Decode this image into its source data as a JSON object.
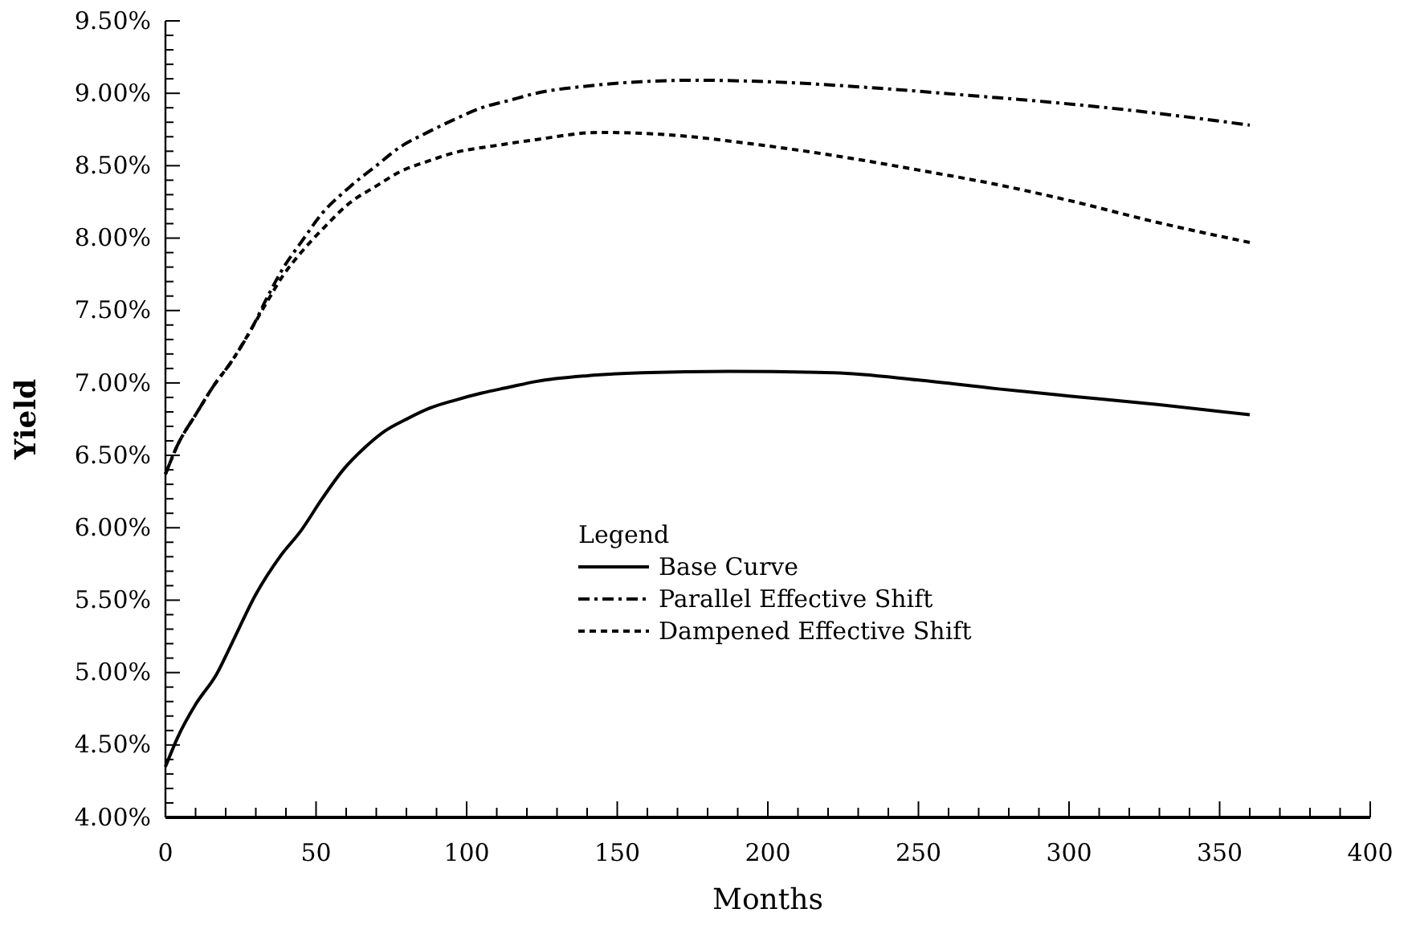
{
  "chart_data": {
    "type": "line",
    "xlabel": "Months",
    "ylabel": "Yield",
    "legend_title": "Legend",
    "legend": "center",
    "xlim": [
      0,
      400
    ],
    "ylim": [
      4,
      9.5
    ],
    "xticks": [
      0,
      {
        "value": 10,
        "label": null
      },
      {
        "value": 20,
        "label": null
      },
      {
        "value": 30,
        "label": null
      },
      {
        "value": 40,
        "label": null
      },
      50,
      {
        "value": 60,
        "label": null
      },
      {
        "value": 70,
        "label": null
      },
      {
        "value": 80,
        "label": null
      },
      {
        "value": 90,
        "label": null
      },
      100,
      {
        "value": 110,
        "label": null
      },
      {
        "value": 120,
        "label": null
      },
      {
        "value": 130,
        "label": null
      },
      {
        "value": 140,
        "label": null
      },
      150,
      {
        "value": 160,
        "label": null
      },
      {
        "value": 170,
        "label": null
      },
      {
        "value": 180,
        "label": null
      },
      {
        "value": 190,
        "label": null
      },
      200,
      {
        "value": 210,
        "label": null
      },
      {
        "value": 220,
        "label": null
      },
      {
        "value": 230,
        "label": null
      },
      {
        "value": 240,
        "label": null
      },
      250,
      {
        "value": 260,
        "label": null
      },
      {
        "value": 270,
        "label": null
      },
      {
        "value": 280,
        "label": null
      },
      {
        "value": 290,
        "label": null
      },
      300,
      {
        "value": 310,
        "label": null
      },
      {
        "value": 320,
        "label": null
      },
      {
        "value": 330,
        "label": null
      },
      {
        "value": 340,
        "label": null
      },
      350,
      {
        "value": 360,
        "label": null
      },
      {
        "value": 370,
        "label": null
      },
      {
        "value": 380,
        "label": null
      },
      {
        "value": 390,
        "label": null
      },
      400
    ],
    "yticks": [
      {
        "value": 4,
        "label": "4.00%"
      },
      {
        "value": 4.1,
        "label": null
      },
      {
        "value": 4.2,
        "label": null
      },
      {
        "value": 4.3,
        "label": null
      },
      {
        "value": 4.4,
        "label": null
      },
      {
        "value": 4.5,
        "label": "4.50%"
      },
      {
        "value": 4.6,
        "label": null
      },
      {
        "value": 4.7,
        "label": null
      },
      {
        "value": 4.8,
        "label": null
      },
      {
        "value": 4.9,
        "label": null
      },
      {
        "value": 5,
        "label": "5.00%"
      },
      {
        "value": 5.1,
        "label": null
      },
      {
        "value": 5.2,
        "label": null
      },
      {
        "value": 5.3,
        "label": null
      },
      {
        "value": 5.4,
        "label": null
      },
      {
        "value": 5.5,
        "label": "5.50%"
      },
      {
        "value": 5.6,
        "label": null
      },
      {
        "value": 5.7,
        "label": null
      },
      {
        "value": 5.8,
        "label": null
      },
      {
        "value": 5.9,
        "label": null
      },
      {
        "value": 6,
        "label": "6.00%"
      },
      {
        "value": 6.1,
        "label": null
      },
      {
        "value": 6.2,
        "label": null
      },
      {
        "value": 6.3,
        "label": null
      },
      {
        "value": 6.4,
        "label": null
      },
      {
        "value": 6.5,
        "label": "6.50%"
      },
      {
        "value": 6.6,
        "label": null
      },
      {
        "value": 6.7,
        "label": null
      },
      {
        "value": 6.8,
        "label": null
      },
      {
        "value": 6.9,
        "label": null
      },
      {
        "value": 7,
        "label": "7.00%"
      },
      {
        "value": 7.1,
        "label": null
      },
      {
        "value": 7.2,
        "label": null
      },
      {
        "value": 7.3,
        "label": null
      },
      {
        "value": 7.4,
        "label": null
      },
      {
        "value": 7.5,
        "label": "7.50%"
      },
      {
        "value": 7.6,
        "label": null
      },
      {
        "value": 7.7,
        "label": null
      },
      {
        "value": 7.8,
        "label": null
      },
      {
        "value": 7.9,
        "label": null
      },
      {
        "value": 8,
        "label": "8.00%"
      },
      {
        "value": 8.1,
        "label": null
      },
      {
        "value": 8.2,
        "label": null
      },
      {
        "value": 8.3,
        "label": null
      },
      {
        "value": 8.4,
        "label": null
      },
      {
        "value": 8.5,
        "label": "8.50%"
      },
      {
        "value": 8.6,
        "label": null
      },
      {
        "value": 8.7,
        "label": null
      },
      {
        "value": 8.8,
        "label": null
      },
      {
        "value": 8.9,
        "label": null
      },
      {
        "value": 9,
        "label": "9.00%"
      },
      {
        "value": 9.1,
        "label": null
      },
      {
        "value": 9.2,
        "label": null
      },
      {
        "value": 9.3,
        "label": null
      },
      {
        "value": 9.4,
        "label": null
      },
      {
        "value": 9.5,
        "label": "9.50%"
      }
    ],
    "series": [
      {
        "name": "Base Curve",
        "color": "#000000",
        "line_style": "solid",
        "x": [
          0,
          4,
          10,
          17,
          22,
          30,
          38,
          45,
          52,
          59,
          66,
          73,
          80,
          87,
          96,
          105,
          114,
          123,
          140,
          158,
          187,
          222,
          250,
          276,
          300,
          330,
          360
        ],
        "values": [
          4.35,
          4.55,
          4.78,
          4.99,
          5.2,
          5.54,
          5.8,
          5.98,
          6.2,
          6.4,
          6.55,
          6.67,
          6.75,
          6.82,
          6.88,
          6.93,
          6.97,
          7.01,
          7.05,
          7.07,
          7.08,
          7.07,
          7.02,
          6.96,
          6.91,
          6.85,
          6.78
        ]
      },
      {
        "name": "Parallel Effective Shift",
        "color": "#000000",
        "line_style": "dashed",
        "x": [
          0,
          4,
          10,
          16,
          22,
          29,
          34,
          39,
          45,
          52,
          61,
          70,
          78,
          87,
          96,
          105,
          114,
          123,
          140,
          158,
          176,
          200,
          240,
          270,
          293,
          330,
          360
        ],
        "values": [
          6.37,
          6.57,
          6.78,
          6.98,
          7.15,
          7.39,
          7.6,
          7.79,
          7.97,
          8.17,
          8.35,
          8.5,
          8.63,
          8.73,
          8.82,
          8.9,
          8.95,
          9.0,
          9.05,
          9.08,
          9.09,
          9.08,
          9.03,
          8.98,
          8.94,
          8.86,
          8.78
        ]
      },
      {
        "name": "Dampened Effective Shift",
        "color": "#000000",
        "line_style": "dotted",
        "x": [
          0,
          4,
          10,
          16,
          22,
          29,
          34,
          39,
          45,
          53,
          61,
          70,
          78,
          87,
          96,
          110,
          123,
          144,
          169,
          195,
          222,
          250,
          276,
          300,
          329,
          360
        ],
        "values": [
          6.37,
          6.57,
          6.78,
          6.98,
          7.15,
          7.39,
          7.57,
          7.74,
          7.9,
          8.08,
          8.24,
          8.36,
          8.46,
          8.53,
          8.59,
          8.64,
          8.68,
          8.73,
          8.71,
          8.65,
          8.57,
          8.47,
          8.37,
          8.26,
          8.11,
          7.97
        ]
      }
    ]
  }
}
